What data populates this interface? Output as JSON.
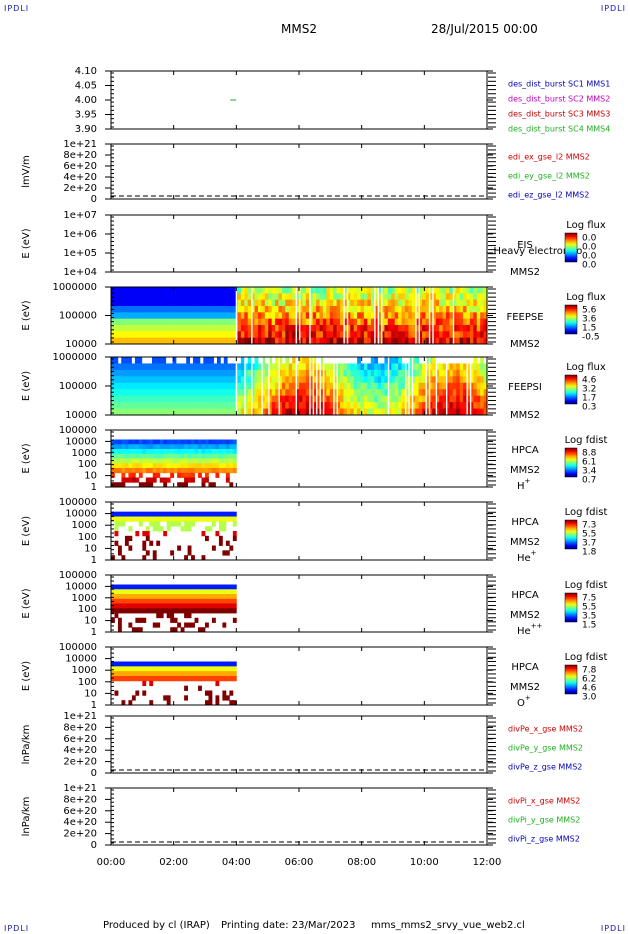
{
  "corners": {
    "tl": "IPDLI",
    "tr": "IPDLI",
    "bl": "IPDLI",
    "br": "IPDLI"
  },
  "header": {
    "spacecraft": "MMS2",
    "date": "28/Jul/2015 00:00"
  },
  "footer": {
    "produced": "Produced by cl (IRAP)",
    "printing": "Printing date: 23/Mar/2023",
    "script": "mms_mms2_srvy_vue_web2.cl"
  },
  "colors": {
    "sc1": "#0000b0",
    "sc2": "#c000c0",
    "sc3": "#c00000",
    "sc4": "#20b020",
    "red": "#d00000",
    "green": "#20b020",
    "blue": "#0000b0"
  },
  "chart_data": {
    "type": "multi-panel time series / spectrograms",
    "x": {
      "ticks": [
        "00:00",
        "02:00",
        "04:00",
        "06:00",
        "08:00",
        "10:00",
        "12:00"
      ],
      "range_hours": [
        0,
        12
      ]
    },
    "panels": [
      {
        "id": "p1",
        "type": "line",
        "ylabel": "",
        "yticks": [
          "4.10",
          "4.05",
          "4.00",
          "3.95",
          "3.90"
        ],
        "ylim": [
          3.9,
          4.1
        ],
        "legend": [
          {
            "name": "des_dist_burst SC1 MMS1",
            "color": "#0000b0"
          },
          {
            "name": "des_dist_burst SC2 MMS2",
            "color": "#c000c0"
          },
          {
            "name": "des_dist_burst SC3 MMS3",
            "color": "#c00000"
          },
          {
            "name": "des_dist_burst SC4 MMS4",
            "color": "#20b020"
          }
        ],
        "points": [
          {
            "x": 3.9,
            "y": 4.0,
            "color": "#20b020"
          }
        ]
      },
      {
        "id": "p2",
        "type": "line",
        "ylabel": "lmV/m",
        "yticks": [
          "1e+21",
          "8e+20",
          "6e+20",
          "4e+20",
          "2e+20",
          "0"
        ],
        "ylim": [
          0,
          1e+21
        ],
        "legend": [
          {
            "name": "edi_ex_gse_l2 MMS2",
            "color": "#d00000"
          },
          {
            "name": "edi_ey_gse_l2 MMS2",
            "color": "#20b020"
          },
          {
            "name": "edi_ez_gse_l2 MMS2",
            "color": "#0000b0"
          }
        ]
      },
      {
        "id": "p3",
        "type": "heatmap",
        "ylabel": "E (eV)",
        "yticks": [
          "1e+07",
          "1e+06",
          "1e+05",
          "1e+04"
        ],
        "labels": [
          "EIS",
          "MMS2"
        ],
        "overlay": "Heavy electron to",
        "colorbar": {
          "title": "Log flux",
          "ticks": [
            "0.0",
            "0.0",
            "0.0",
            "0.0"
          ]
        }
      },
      {
        "id": "p4",
        "type": "heatmap",
        "ylabel": "E (eV)",
        "yticks": [
          "1000000",
          "100000",
          "10000"
        ],
        "labels": [
          "FEEPSE",
          "MMS2"
        ],
        "colorbar": {
          "title": "Log flux",
          "ticks": [
            "5.6",
            "3.6",
            "1.5",
            "-0.5"
          ]
        }
      },
      {
        "id": "p5",
        "type": "heatmap",
        "ylabel": "E (eV)",
        "yticks": [
          "1000000",
          "100000",
          "10000"
        ],
        "labels": [
          "FEEPSI",
          "MMS2"
        ],
        "colorbar": {
          "title": "Log flux",
          "ticks": [
            "4.6",
            "3.2",
            "1.7",
            "0.3"
          ]
        }
      },
      {
        "id": "p6",
        "type": "heatmap",
        "ylabel": "E (eV)",
        "yticks": [
          "100000",
          "10000",
          "1000",
          "100",
          "10",
          "1"
        ],
        "labels": [
          "HPCA",
          "MMS2"
        ],
        "species": "H",
        "charge": "+",
        "colorbar": {
          "title": "Log fdist",
          "ticks": [
            "8.8",
            "6.1",
            "3.4",
            "0.7"
          ]
        }
      },
      {
        "id": "p7",
        "type": "heatmap",
        "ylabel": "E (eV)",
        "yticks": [
          "100000",
          "10000",
          "1000",
          "100",
          "10",
          "1"
        ],
        "labels": [
          "HPCA",
          "MMS2"
        ],
        "species": "He",
        "charge": "+",
        "colorbar": {
          "title": "Log fdist",
          "ticks": [
            "7.3",
            "5.5",
            "3.7",
            "1.8"
          ]
        }
      },
      {
        "id": "p8",
        "type": "heatmap",
        "ylabel": "E (eV)",
        "yticks": [
          "100000",
          "10000",
          "1000",
          "100",
          "10",
          "1"
        ],
        "labels": [
          "HPCA",
          "MMS2"
        ],
        "species": "He",
        "charge": "++",
        "colorbar": {
          "title": "Log fdist",
          "ticks": [
            "7.5",
            "5.5",
            "3.5",
            "1.5"
          ]
        }
      },
      {
        "id": "p9",
        "type": "heatmap",
        "ylabel": "E (eV)",
        "yticks": [
          "100000",
          "10000",
          "1000",
          "100",
          "10",
          "1"
        ],
        "labels": [
          "HPCA",
          "MMS2"
        ],
        "species": "O",
        "charge": "+",
        "colorbar": {
          "title": "Log fdist",
          "ticks": [
            "7.8",
            "6.2",
            "4.6",
            "3.0"
          ]
        }
      },
      {
        "id": "p10",
        "type": "line",
        "ylabel": "lnPa/km",
        "yticks": [
          "1e+21",
          "8e+20",
          "6e+20",
          "4e+20",
          "2e+20",
          "0"
        ],
        "ylim": [
          0,
          1e+21
        ],
        "legend": [
          {
            "name": "divPe_x_gse MMS2",
            "color": "#d00000"
          },
          {
            "name": "divPe_y_gse MMS2",
            "color": "#20b020"
          },
          {
            "name": "divPe_z_gse MMS2",
            "color": "#0000b0"
          }
        ]
      },
      {
        "id": "p11",
        "type": "line",
        "ylabel": "lnPa/km",
        "yticks": [
          "1e+21",
          "8e+20",
          "6e+20",
          "4e+20",
          "2e+20",
          "0"
        ],
        "ylim": [
          0,
          1e+21
        ],
        "legend": [
          {
            "name": "divPi_x_gse MMS2",
            "color": "#d00000"
          },
          {
            "name": "divPi_y_gse MMS2",
            "color": "#20b020"
          },
          {
            "name": "divPi_z_gse MMS2",
            "color": "#0000b0"
          }
        ]
      }
    ]
  }
}
